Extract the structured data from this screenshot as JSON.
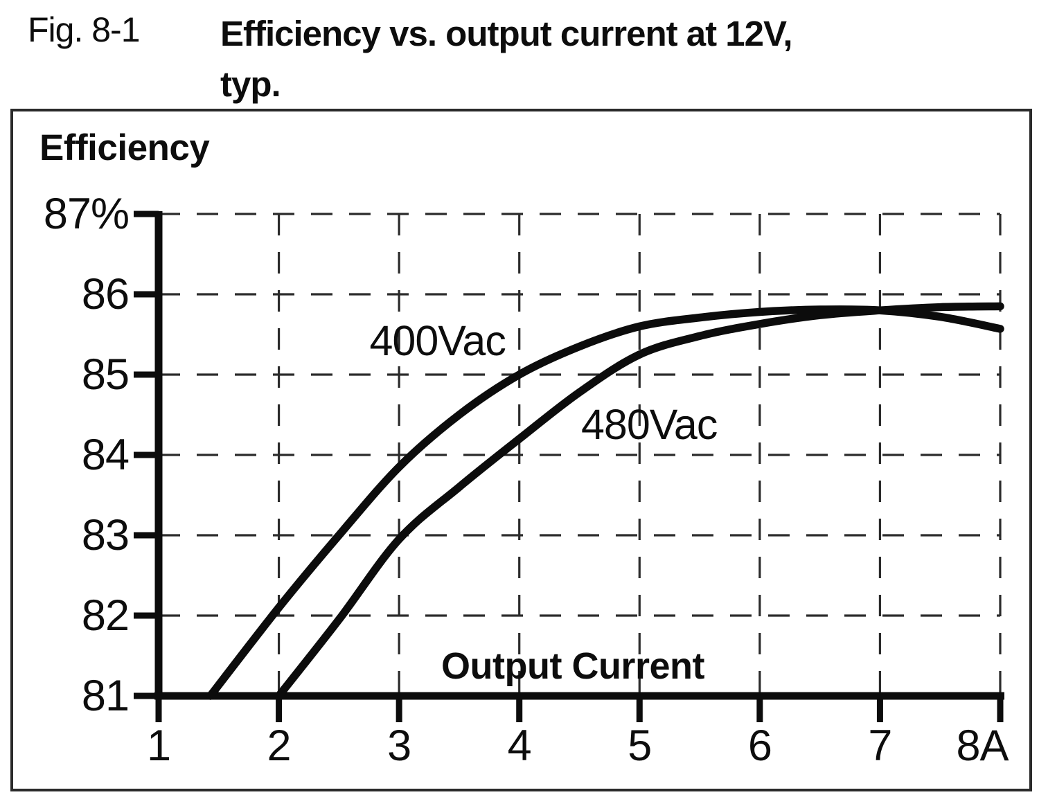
{
  "figure": {
    "fig_label": "Fig. 8-1",
    "title_line1": "Efficiency vs. output current at 12V,",
    "title_line2": "typ."
  },
  "chart_data": {
    "type": "line",
    "title": "Efficiency",
    "xlabel": "Output Current",
    "ylabel": "Efficiency",
    "x_unit": "A",
    "y_unit": "%",
    "xlim": [
      1,
      8
    ],
    "ylim": [
      81,
      87
    ],
    "x_ticks": [
      "1",
      "2",
      "3",
      "4",
      "5",
      "6",
      "7",
      "8A"
    ],
    "x_tick_values": [
      1,
      2,
      3,
      4,
      5,
      6,
      7,
      8
    ],
    "y_ticks": [
      "87%",
      "86",
      "85",
      "84",
      "83",
      "82",
      "81"
    ],
    "y_tick_values": [
      87,
      86,
      85,
      84,
      83,
      82,
      81
    ],
    "grid": "dashed-both-axes",
    "legend_position": "inline-labels",
    "series": [
      {
        "name": "400Vac",
        "x": [
          1.43,
          2,
          2.5,
          3,
          3.5,
          4,
          4.5,
          5,
          5.5,
          6,
          6.5,
          7,
          7.5,
          8
        ],
        "y": [
          81,
          82.1,
          83.0,
          83.85,
          84.5,
          85.0,
          85.35,
          85.6,
          85.71,
          85.78,
          85.81,
          85.8,
          85.72,
          85.57
        ],
        "label_pos": {
          "x": 3.32,
          "y": 85.42
        }
      },
      {
        "name": "480Vac",
        "x": [
          2,
          2.5,
          3,
          3.5,
          4,
          4.5,
          5,
          5.5,
          6,
          6.5,
          7,
          7.5,
          8
        ],
        "y": [
          81,
          81.95,
          82.95,
          83.6,
          84.2,
          84.78,
          85.25,
          85.48,
          85.63,
          85.74,
          85.8,
          85.84,
          85.85
        ],
        "label_pos": {
          "x": 5.08,
          "y": 84.38
        }
      }
    ],
    "colors": {
      "line": "#0c0c0c",
      "grid": "#2b2b2b",
      "text": "#0d0d0d",
      "background": "#ffffff",
      "box_border": "#2a2a2a"
    }
  }
}
